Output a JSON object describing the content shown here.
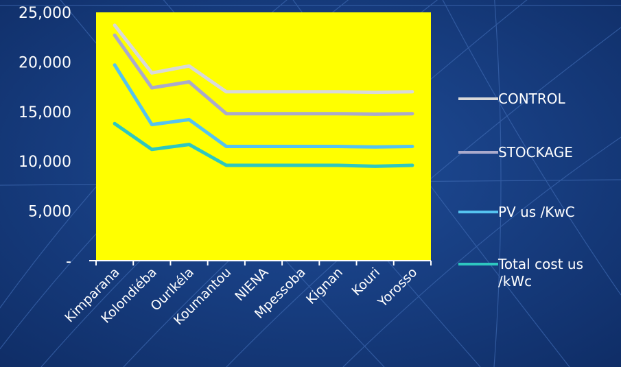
{
  "chart_data": {
    "type": "line",
    "categories": [
      "Kimparana",
      "Kolondiéba",
      "OurIkéla",
      "Koumantou",
      "NIENA",
      "Mpessoba",
      "Kignan",
      "Kouri",
      "Yorosso"
    ],
    "ylim": [
      0,
      25000
    ],
    "y_ticks": [
      "-",
      "5,000",
      "10,000",
      "15,000",
      "20,000",
      "25,000"
    ],
    "grid": false,
    "plot_background": "#ffff00",
    "legend_position": "right",
    "series": [
      {
        "name": "CONTROL",
        "color": "#d9d9d9",
        "values": [
          23700,
          18900,
          19600,
          17000,
          17000,
          17000,
          17000,
          16950,
          17000
        ]
      },
      {
        "name": "STOCKAGE",
        "color": "#aaaacc",
        "values": [
          22700,
          17400,
          18000,
          14800,
          14800,
          14800,
          14800,
          14750,
          14800
        ]
      },
      {
        "name": "PV us /KwC",
        "color": "#55c3f0",
        "values": [
          19700,
          13700,
          14200,
          11500,
          11500,
          11500,
          11500,
          11450,
          11500
        ]
      },
      {
        "name": "Total cost  us /kWc",
        "legend_lines": [
          "Total cost  us",
          "/kWc"
        ],
        "color": "#2ec7c0",
        "values": [
          13800,
          11200,
          11700,
          9600,
          9600,
          9600,
          9600,
          9500,
          9600
        ]
      }
    ]
  }
}
